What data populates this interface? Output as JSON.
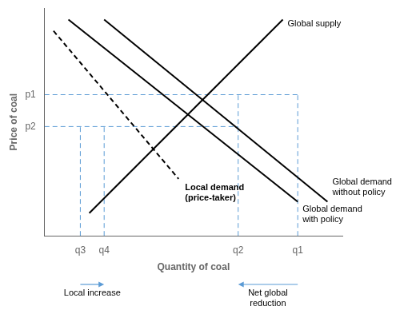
{
  "chart_data": {
    "type": "line",
    "xlabel": "Quantity of coal",
    "ylabel": "Price of coal",
    "xlim": [
      0,
      10
    ],
    "ylim": [
      0,
      10
    ],
    "xticks": [
      {
        "value": 1.2,
        "label": "q3"
      },
      {
        "value": 2.0,
        "label": "q4"
      },
      {
        "value": 6.5,
        "label": "q2"
      },
      {
        "value": 8.5,
        "label": "q1"
      }
    ],
    "yticks": [
      {
        "value": 4.8,
        "label": "p2"
      },
      {
        "value": 6.2,
        "label": "p1"
      }
    ],
    "grid": false,
    "series": [
      {
        "name": "Global supply",
        "color": "#000000",
        "line_style": "solid",
        "x": [
          1.5,
          8.0
        ],
        "values": [
          1.0,
          9.5
        ]
      },
      {
        "name": "Global demand\nwithout policy",
        "color": "#000000",
        "line_style": "solid",
        "x": [
          2.0,
          9.5
        ],
        "values": [
          9.5,
          1.5
        ]
      },
      {
        "name": "Global demand\nwith policy",
        "color": "#000000",
        "line_style": "solid",
        "x": [
          0.8,
          8.5
        ],
        "values": [
          9.5,
          1.5
        ]
      },
      {
        "name": "Local demand\n(price-taker)",
        "color": "#000000",
        "line_style": "dashed",
        "x": [
          0.3,
          4.5
        ],
        "values": [
          9.0,
          2.5
        ]
      }
    ],
    "reference_lines": [
      {
        "color": "#5b9bd5",
        "line_style": "dashed",
        "x": [
          0,
          8.5
        ],
        "values": [
          6.2,
          6.2
        ]
      },
      {
        "color": "#5b9bd5",
        "line_style": "dashed",
        "x": [
          8.5,
          8.5
        ],
        "values": [
          0,
          6.2
        ]
      },
      {
        "color": "#5b9bd5",
        "line_style": "dashed",
        "x": [
          6.5,
          6.5
        ],
        "values": [
          0,
          6.2
        ]
      },
      {
        "color": "#5b9bd5",
        "line_style": "dashed",
        "x": [
          0,
          6.5
        ],
        "values": [
          4.8,
          4.8
        ]
      },
      {
        "color": "#5b9bd5",
        "line_style": "dashed",
        "x": [
          1.2,
          1.2
        ],
        "values": [
          0,
          4.8
        ]
      },
      {
        "color": "#5b9bd5",
        "line_style": "dashed",
        "x": [
          2.0,
          2.0
        ],
        "values": [
          0,
          4.8
        ]
      }
    ],
    "annotations": [
      {
        "text": "Local increase",
        "x": [
          1.2,
          2.0
        ],
        "color": "#5b9bd5"
      },
      {
        "text": "Net global\nreduction",
        "x": [
          8.5,
          6.5
        ],
        "color": "#5b9bd5"
      }
    ]
  }
}
